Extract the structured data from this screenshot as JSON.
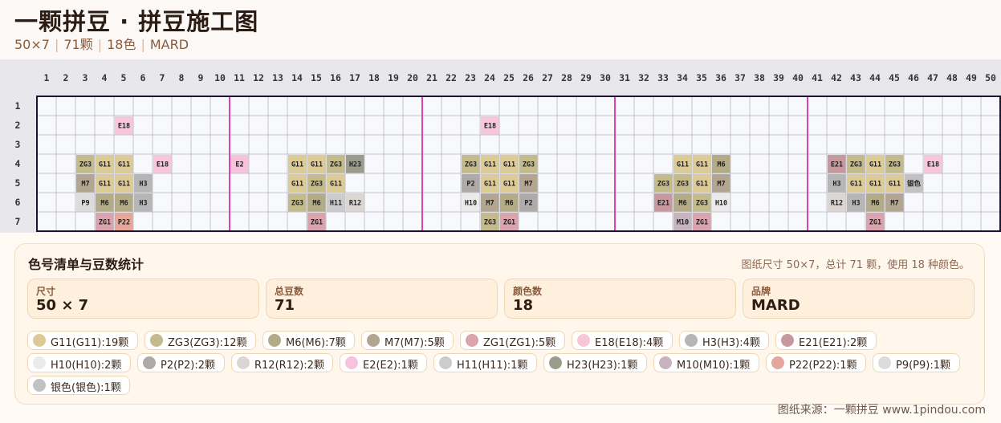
{
  "header": {
    "title": "一颗拼豆 · 拼豆施工图",
    "size": "50×7",
    "count": "71颗",
    "colors": "18色",
    "brand": "MARD"
  },
  "grid": {
    "columns": 50,
    "rows": 7,
    "major_line_every": 10,
    "major_line_color": "#dd44aa",
    "beads": [
      {
        "row": 2,
        "col": 5,
        "code": "E18"
      },
      {
        "row": 2,
        "col": 24,
        "code": "E18"
      },
      {
        "row": 4,
        "col": 3,
        "code": "ZG3"
      },
      {
        "row": 4,
        "col": 4,
        "code": "G11"
      },
      {
        "row": 4,
        "col": 5,
        "code": "G11"
      },
      {
        "row": 4,
        "col": 7,
        "code": "E18"
      },
      {
        "row": 4,
        "col": 11,
        "code": "E2"
      },
      {
        "row": 4,
        "col": 14,
        "code": "G11"
      },
      {
        "row": 4,
        "col": 15,
        "code": "G11"
      },
      {
        "row": 4,
        "col": 16,
        "code": "ZG3"
      },
      {
        "row": 4,
        "col": 17,
        "code": "H23"
      },
      {
        "row": 4,
        "col": 23,
        "code": "ZG3"
      },
      {
        "row": 4,
        "col": 24,
        "code": "G11"
      },
      {
        "row": 4,
        "col": 25,
        "code": "G11"
      },
      {
        "row": 4,
        "col": 26,
        "code": "ZG3"
      },
      {
        "row": 4,
        "col": 34,
        "code": "G11"
      },
      {
        "row": 4,
        "col": 35,
        "code": "G11"
      },
      {
        "row": 4,
        "col": 36,
        "code": "M6"
      },
      {
        "row": 4,
        "col": 42,
        "code": "E21"
      },
      {
        "row": 4,
        "col": 43,
        "code": "ZG3"
      },
      {
        "row": 4,
        "col": 44,
        "code": "G11"
      },
      {
        "row": 4,
        "col": 45,
        "code": "ZG3"
      },
      {
        "row": 4,
        "col": 47,
        "code": "E18"
      },
      {
        "row": 5,
        "col": 3,
        "code": "M7"
      },
      {
        "row": 5,
        "col": 4,
        "code": "G11"
      },
      {
        "row": 5,
        "col": 5,
        "code": "G11"
      },
      {
        "row": 5,
        "col": 6,
        "code": "H3"
      },
      {
        "row": 5,
        "col": 14,
        "code": "G11"
      },
      {
        "row": 5,
        "col": 15,
        "code": "ZG3"
      },
      {
        "row": 5,
        "col": 16,
        "code": "G11"
      },
      {
        "row": 5,
        "col": 23,
        "code": "P2"
      },
      {
        "row": 5,
        "col": 24,
        "code": "G11"
      },
      {
        "row": 5,
        "col": 25,
        "code": "G11"
      },
      {
        "row": 5,
        "col": 26,
        "code": "M7"
      },
      {
        "row": 5,
        "col": 33,
        "code": "ZG3"
      },
      {
        "row": 5,
        "col": 34,
        "code": "ZG3"
      },
      {
        "row": 5,
        "col": 35,
        "code": "G11"
      },
      {
        "row": 5,
        "col": 36,
        "code": "M7"
      },
      {
        "row": 5,
        "col": 42,
        "code": "H3"
      },
      {
        "row": 5,
        "col": 43,
        "code": "G11"
      },
      {
        "row": 5,
        "col": 44,
        "code": "G11"
      },
      {
        "row": 5,
        "col": 45,
        "code": "G11"
      },
      {
        "row": 5,
        "col": 46,
        "code": "银色"
      },
      {
        "row": 6,
        "col": 3,
        "code": "P9"
      },
      {
        "row": 6,
        "col": 4,
        "code": "M6"
      },
      {
        "row": 6,
        "col": 5,
        "code": "M6"
      },
      {
        "row": 6,
        "col": 6,
        "code": "H3"
      },
      {
        "row": 6,
        "col": 14,
        "code": "ZG3"
      },
      {
        "row": 6,
        "col": 15,
        "code": "M6"
      },
      {
        "row": 6,
        "col": 16,
        "code": "H11"
      },
      {
        "row": 6,
        "col": 17,
        "code": "R12"
      },
      {
        "row": 6,
        "col": 23,
        "code": "H10"
      },
      {
        "row": 6,
        "col": 24,
        "code": "M7"
      },
      {
        "row": 6,
        "col": 25,
        "code": "M6"
      },
      {
        "row": 6,
        "col": 26,
        "code": "P2"
      },
      {
        "row": 6,
        "col": 33,
        "code": "E21"
      },
      {
        "row": 6,
        "col": 34,
        "code": "M6"
      },
      {
        "row": 6,
        "col": 35,
        "code": "ZG3"
      },
      {
        "row": 6,
        "col": 36,
        "code": "H10"
      },
      {
        "row": 6,
        "col": 42,
        "code": "R12"
      },
      {
        "row": 6,
        "col": 43,
        "code": "H3"
      },
      {
        "row": 6,
        "col": 44,
        "code": "M6"
      },
      {
        "row": 6,
        "col": 45,
        "code": "M7"
      },
      {
        "row": 7,
        "col": 4,
        "code": "ZG1"
      },
      {
        "row": 7,
        "col": 5,
        "code": "P22"
      },
      {
        "row": 7,
        "col": 15,
        "code": "ZG1"
      },
      {
        "row": 7,
        "col": 24,
        "code": "ZG3"
      },
      {
        "row": 7,
        "col": 25,
        "code": "ZG1"
      },
      {
        "row": 7,
        "col": 34,
        "code": "M10"
      },
      {
        "row": 7,
        "col": 35,
        "code": "ZG1"
      },
      {
        "row": 7,
        "col": 44,
        "code": "ZG1"
      }
    ]
  },
  "palette": {
    "G11": "#dccb97",
    "ZG3": "#c3bb8b",
    "M6": "#b3ab87",
    "M7": "#b2a693",
    "ZG1": "#d9a4ad",
    "E18": "#f7c6d8",
    "H3": "#b6b6b6",
    "E21": "#c6999f",
    "H10": "#ebebeb",
    "P2": "#aeaaa8",
    "R12": "#dbd6d2",
    "E2": "#f6c2dc",
    "H11": "#cccccc",
    "H23": "#9c9c8c",
    "M10": "#c8b4bc",
    "P22": "#e4a79a",
    "P9": "#dcdcdc",
    "银色": "#c2c2c2"
  },
  "stats": {
    "title": "色号清单与豆数统计",
    "summary": "图纸尺寸 50×7，总计 71 颗，使用 18 种颜色。",
    "cards": [
      {
        "label": "尺寸",
        "value": "50 × 7"
      },
      {
        "label": "总豆数",
        "value": "71"
      },
      {
        "label": "颜色数",
        "value": "18"
      },
      {
        "label": "品牌",
        "value": "MARD"
      }
    ],
    "chips": [
      {
        "text": "G11(G11):19颗",
        "color": "#dccb97"
      },
      {
        "text": "ZG3(ZG3):12颗",
        "color": "#c3bb8b"
      },
      {
        "text": "M6(M6):7颗",
        "color": "#b3ab87"
      },
      {
        "text": "M7(M7):5颗",
        "color": "#b2a693"
      },
      {
        "text": "ZG1(ZG1):5颗",
        "color": "#d9a4ad"
      },
      {
        "text": "E18(E18):4颗",
        "color": "#f7c6d8"
      },
      {
        "text": "H3(H3):4颗",
        "color": "#b6b6b6"
      },
      {
        "text": "E21(E21):2颗",
        "color": "#c6999f"
      },
      {
        "text": "H10(H10):2颗",
        "color": "#ebebeb"
      },
      {
        "text": "P2(P2):2颗",
        "color": "#aeaaa8"
      },
      {
        "text": "R12(R12):2颗",
        "color": "#dbd6d2"
      },
      {
        "text": "E2(E2):1颗",
        "color": "#f6c2dc"
      },
      {
        "text": "H11(H11):1颗",
        "color": "#cccccc"
      },
      {
        "text": "H23(H23):1颗",
        "color": "#9c9c8c"
      },
      {
        "text": "M10(M10):1颗",
        "color": "#c8b4bc"
      },
      {
        "text": "P22(P22):1颗",
        "color": "#e4a79a"
      },
      {
        "text": "P9(P9):1颗",
        "color": "#dcdcdc"
      },
      {
        "text": "银色(银色):1颗",
        "color": "#c2c2c2"
      }
    ]
  },
  "footer": "图纸来源：一颗拼豆 www.1pindou.com"
}
